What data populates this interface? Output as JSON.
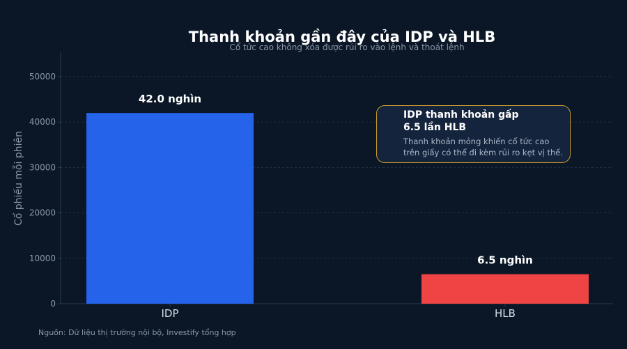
{
  "chart_data": {
    "type": "bar",
    "title": "Thanh khoản gần đây của IDP và HLB",
    "subtitle": "Cổ tức cao không xóa được rủi ro vào lệnh và thoát lệnh",
    "ylabel": "Cổ phiếu mỗi phiên",
    "xlabel": "",
    "categories": [
      "IDP",
      "HLB"
    ],
    "values": [
      42000,
      6500
    ],
    "data_labels": [
      "42.0 nghìn",
      "6.5 nghìn"
    ],
    "colors": [
      "#2563eb",
      "#ef4444"
    ],
    "ylim": [
      0,
      55000
    ],
    "yticks": [
      0,
      10000,
      20000,
      30000,
      40000,
      50000
    ],
    "ytick_labels": [
      "0",
      "10000",
      "20000",
      "30000",
      "40000",
      "50000"
    ],
    "grid": true,
    "annotation": {
      "title": "IDP thanh khoản gấp 6.5 lần HLB",
      "title_line1": "IDP thanh khoản gấp",
      "title_line2": "6.5 lần HLB",
      "body": "Thanh khoản mỏng khiến cổ tức cao trên giấy có thể đi kèm rủi ro kẹt vị thế.",
      "body_line1": "Thanh khoản mỏng khiến cổ tức cao",
      "body_line2": "trên giấy có thể đi kèm rủi ro kẹt vị thế.",
      "border_color": "#c99a2e"
    },
    "source": "Nguồn: Dữ liệu thị trường nội bộ, Investify tổng hợp"
  }
}
